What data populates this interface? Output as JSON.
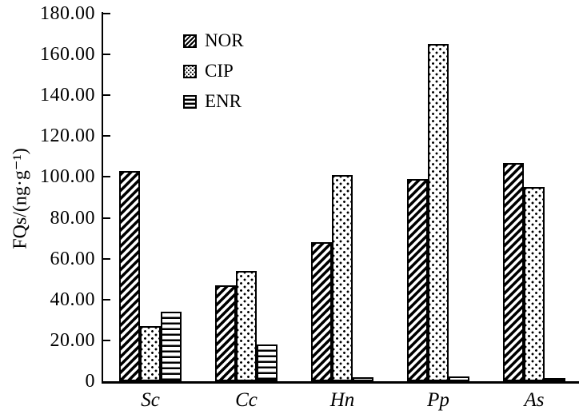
{
  "figure": {
    "background": "#ffffff",
    "foreground": "#000000"
  },
  "chart_data": {
    "type": "bar",
    "title": "",
    "xlabel": "",
    "ylabel": "FQs/(ng·g⁻¹)",
    "ylim": [
      0,
      180
    ],
    "ytick_step": 20,
    "ytick_labels": [
      "0",
      "20.00",
      "40.00",
      "60.00",
      "80.00",
      "100.00",
      "120.00",
      "140.00",
      "160.00",
      "180.00"
    ],
    "categories": [
      "Sc",
      "Cc",
      "Hn",
      "Pp",
      "As"
    ],
    "series": [
      {
        "name": "NOR",
        "pattern": "diagonal-hatch",
        "values": [
          103,
          47,
          68,
          99,
          107
        ]
      },
      {
        "name": "CIP",
        "pattern": "dots",
        "values": [
          27,
          54,
          101,
          165,
          95
        ]
      },
      {
        "name": "ENR",
        "pattern": "horizontal-lines",
        "values": [
          34,
          18,
          2,
          2.5,
          1
        ]
      }
    ],
    "grid": false,
    "legend_position": "upper-left-inside",
    "style": "black-and-white hatched scientific figure"
  }
}
